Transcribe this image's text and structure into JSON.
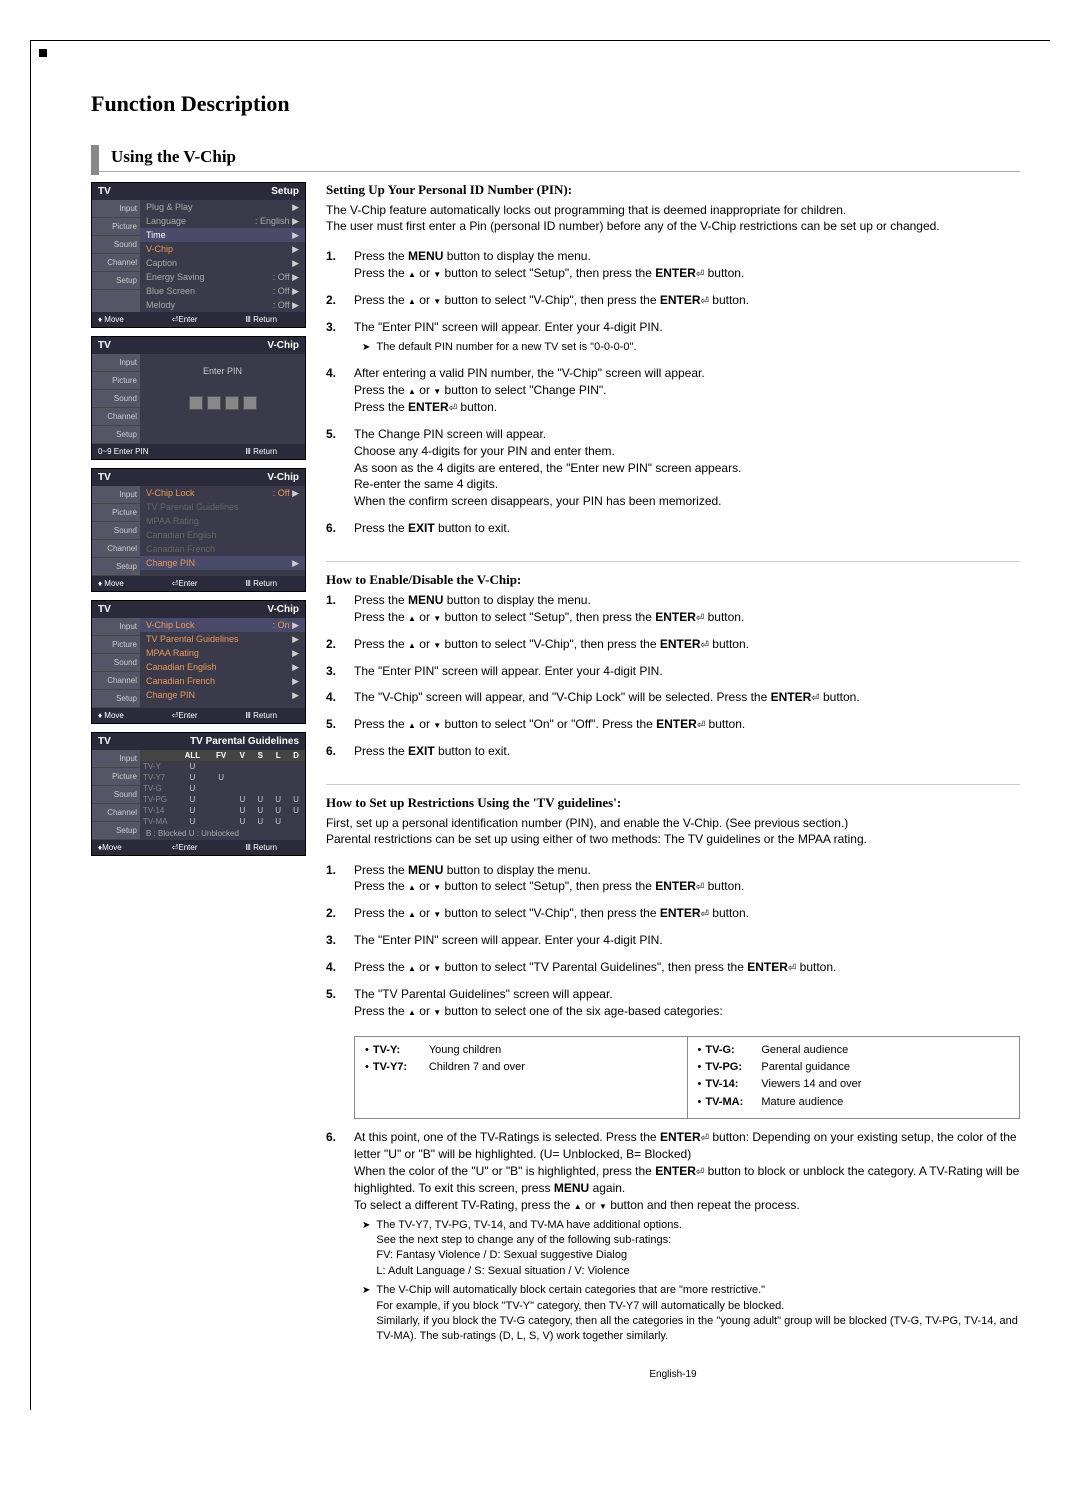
{
  "title": "Function Description",
  "section1": {
    "title": "Using the V-Chip",
    "head": "Setting Up Your Personal ID Number (PIN):",
    "intro1": "The V-Chip feature automatically locks out programming that is deemed inappropriate for children.",
    "intro2": "The user must first enter a Pin (personal ID number) before any of the V-Chip restrictions can be set up or changed.",
    "steps": [
      {
        "n": "1.",
        "t": "Press the <b>MENU</b> button to display the menu.<br>Press the <span class='arr-up'></span> or <span class='arr-dn'></span> button to select \"Setup\", then press the <b>ENTER</b><span class='enter-sym'></span> button."
      },
      {
        "n": "2.",
        "t": "Press the <span class='arr-up'></span> or <span class='arr-dn'></span> button to select \"V-Chip\", then press the <b>ENTER</b><span class='enter-sym'></span> button."
      },
      {
        "n": "3.",
        "t": "The \"Enter PIN\" screen will appear. Enter your 4-digit PIN.",
        "note": "The default PIN number for a new TV set is \"0-0-0-0\"."
      },
      {
        "n": "4.",
        "t": "After entering a valid PIN number, the \"V-Chip\" screen will appear.<br>Press the <span class='arr-up'></span> or <span class='arr-dn'></span> button to select \"Change PIN\".<br>Press the <b>ENTER</b><span class='enter-sym'></span> button."
      },
      {
        "n": "5.",
        "t": "The Change PIN screen will appear.<br>Choose any 4-digits for your PIN and enter them.<br>As soon as the 4 digits are entered, the \"Enter new PIN\" screen appears.<br>Re-enter the same 4 digits.<br>When the confirm screen disappears, your PIN has been memorized."
      },
      {
        "n": "6.",
        "t": "Press the <b>EXIT</b> button to exit."
      }
    ]
  },
  "section2": {
    "head": "How to Enable/Disable the V-Chip:",
    "steps": [
      {
        "n": "1.",
        "t": "Press the <b>MENU</b> button to display the menu.<br>Press the <span class='arr-up'></span> or <span class='arr-dn'></span> button to select \"Setup\", then press the <b>ENTER</b><span class='enter-sym'></span> button."
      },
      {
        "n": "2.",
        "t": "Press the <span class='arr-up'></span> or <span class='arr-dn'></span> button to select \"V-Chip\", then press the <b>ENTER</b><span class='enter-sym'></span> button."
      },
      {
        "n": "3.",
        "t": "The \"Enter PIN\" screen will appear. Enter your 4-digit PIN."
      },
      {
        "n": "4.",
        "t": "The \"V-Chip\" screen will appear, and \"V-Chip Lock\" will be selected. Press the <b>ENTER</b><span class='enter-sym'></span> button."
      },
      {
        "n": "5.",
        "t": "Press the <span class='arr-up'></span> or <span class='arr-dn'></span> button to select \"On\" or \"Off\". Press the <b>ENTER</b><span class='enter-sym'></span> button."
      },
      {
        "n": "6.",
        "t": "Press the <b>EXIT</b> button to exit."
      }
    ]
  },
  "section3": {
    "head": "How to Set up Restrictions Using the 'TV guidelines':",
    "intro1": "First, set up a personal identification number (PIN), and enable the V-Chip. (See previous section.)",
    "intro2": "Parental restrictions can be set up using either of two methods: The TV guidelines or the MPAA rating.",
    "steps": [
      {
        "n": "1.",
        "t": "Press the <b>MENU</b> button to display the menu.<br>Press the <span class='arr-up'></span> or <span class='arr-dn'></span> button to select \"Setup\", then press the <b>ENTER</b><span class='enter-sym'></span> button."
      },
      {
        "n": "2.",
        "t": "Press the <span class='arr-up'></span> or <span class='arr-dn'></span> button to select \"V-Chip\", then press the <b>ENTER</b><span class='enter-sym'></span> button."
      },
      {
        "n": "3.",
        "t": "The \"Enter PIN\" screen will appear. Enter your 4-digit PIN."
      },
      {
        "n": "4.",
        "t": "Press the <span class='arr-up'></span> or <span class='arr-dn'></span> button to select \"TV Parental Guidelines\", then press the <b>ENTER</b><span class='enter-sym'></span> button."
      },
      {
        "n": "5.",
        "t": "The \"TV Parental Guidelines\" screen will appear.<br>Press the <span class='arr-up'></span> or <span class='arr-dn'></span> button to select one of the six age-based categories:"
      },
      {
        "n": "6.",
        "t": "At this point, one of the TV-Ratings is selected. Press the <b>ENTER</b><span class='enter-sym'></span> button: Depending on your existing setup, the color of the letter \"U\" or \"B\" will be highlighted. (U= Unblocked, B= Blocked)<br>When the color of the \"U\" or \"B\" is highlighted, press the <b>ENTER</b><span class='enter-sym'></span> button to block or unblock the category. A TV-Rating will be highlighted. To exit this screen, press <b>MENU</b> again.<br>To select a different TV-Rating, press the <span class='arr-up'></span> or <span class='arr-dn'></span> button and then repeat the process.",
        "notes": [
          "The TV-Y7, TV-PG, TV-14, and TV-MA have additional options.<br>See the next step to change any of the following sub-ratings:<br>FV: Fantasy Violence / D: Sexual suggestive Dialog<br>L: Adult Language / S: Sexual situation / V: Violence",
          "The V-Chip will automatically block certain categories that are \"more restrictive.\"<br>For example, if you block \"TV-Y\" category, then TV-Y7 will automatically be blocked.<br>Similarly, if you block the TV-G category, then all the categories in the \"young adult\" group will be blocked (TV-G, TV-PG, TV-14, and TV-MA). The sub-ratings (D, L, S, V) work together similarly."
        ]
      }
    ],
    "categories": {
      "left": [
        {
          "lbl": "TV-Y:",
          "desc": "Young children"
        },
        {
          "lbl": "TV-Y7:",
          "desc": "Children 7 and over"
        }
      ],
      "right": [
        {
          "lbl": "TV-G:",
          "desc": "General audience"
        },
        {
          "lbl": "TV-PG:",
          "desc": "Parental guidance"
        },
        {
          "lbl": "TV-14:",
          "desc": "Viewers 14 and over"
        },
        {
          "lbl": "TV-MA:",
          "desc": "Mature audience"
        }
      ]
    }
  },
  "tvmenus": {
    "setup": {
      "title": "TV",
      "right": "Setup",
      "sidebar": [
        "Input",
        "Picture",
        "Sound",
        "Channel",
        "Setup"
      ],
      "rows": [
        {
          "l": "Plug & Play",
          "r": "",
          "a": true
        },
        {
          "l": "Language",
          "r": ": English",
          "a": true
        },
        {
          "l": "Time",
          "r": "",
          "a": true,
          "cls": "hl"
        },
        {
          "l": "V-Chip",
          "r": "",
          "a": true,
          "cls": "orange"
        },
        {
          "l": "Caption",
          "r": "",
          "a": true
        },
        {
          "l": "Energy Saving",
          "r": ": Off",
          "a": true
        },
        {
          "l": "Blue Screen",
          "r": ": Off",
          "a": true
        },
        {
          "l": "Melody",
          "r": ": Off",
          "a": true
        }
      ],
      "footer": [
        "♦ Move",
        "⏎Enter",
        "Ⅲ Return"
      ]
    },
    "enterpin": {
      "title": "TV",
      "right": "V-Chip",
      "sidebar": [
        "Input",
        "Picture",
        "Sound",
        "Channel",
        "Setup"
      ],
      "label": "Enter PIN",
      "footer": [
        "0~9 Enter PIN",
        "",
        "Ⅲ Return"
      ]
    },
    "vchip_off": {
      "title": "TV",
      "right": "V-Chip",
      "sidebar": [
        "Input",
        "Picture",
        "Sound",
        "Channel",
        "Setup"
      ],
      "rows": [
        {
          "l": "V-Chip Lock",
          "r": ": Off",
          "a": true,
          "cls": "orange"
        },
        {
          "l": "TV Parental Guidelines",
          "r": "",
          "a": false,
          "dim": true
        },
        {
          "l": "MPAA Rating",
          "r": "",
          "a": false,
          "dim": true
        },
        {
          "l": "Canadian English",
          "r": "",
          "a": false,
          "dim": true
        },
        {
          "l": "Canadian French",
          "r": "",
          "a": false,
          "dim": true
        },
        {
          "l": "Change PIN",
          "r": "",
          "a": true,
          "cls": "hl orange"
        }
      ],
      "footer": [
        "♦ Move",
        "⏎Enter",
        "Ⅲ Return"
      ]
    },
    "vchip_on": {
      "title": "TV",
      "right": "V-Chip",
      "sidebar": [
        "Input",
        "Picture",
        "Sound",
        "Channel",
        "Setup"
      ],
      "rows": [
        {
          "l": "V-Chip Lock",
          "r": ": On",
          "a": true,
          "cls": "hl orange"
        },
        {
          "l": "TV Parental Guidelines",
          "r": "",
          "a": true,
          "cls": "orange"
        },
        {
          "l": "MPAA Rating",
          "r": "",
          "a": true,
          "cls": "orange"
        },
        {
          "l": "Canadian English",
          "r": "",
          "a": true,
          "cls": "orange"
        },
        {
          "l": "Canadian French",
          "r": "",
          "a": true,
          "cls": "orange"
        },
        {
          "l": "Change PIN",
          "r": "",
          "a": true,
          "cls": "orange"
        }
      ],
      "footer": [
        "♦ Move",
        "⏎Enter",
        "Ⅲ Return"
      ]
    },
    "ratings": {
      "title": "TV",
      "right": "TV Parental Guidelines",
      "sidebar": [
        "Input",
        "Picture",
        "Sound",
        "Channel",
        "Setup"
      ],
      "cols": [
        "",
        "ALL",
        "FV",
        "V",
        "S",
        "L",
        "D"
      ],
      "rows": [
        [
          "TV-Y",
          "U",
          "",
          "",
          "",
          "",
          ""
        ],
        [
          "TV-Y7",
          "U",
          "U",
          "",
          "",
          "",
          ""
        ],
        [
          "TV-G",
          "U",
          "",
          "",
          "",
          "",
          ""
        ],
        [
          "TV-PG",
          "U",
          "",
          "U",
          "U",
          "U",
          "U"
        ],
        [
          "TV-14",
          "U",
          "",
          "U",
          "U",
          "U",
          "U"
        ],
        [
          "TV-MA",
          "U",
          "",
          "U",
          "U",
          "U",
          ""
        ]
      ],
      "legend": "B : Blocked       U : Unblocked",
      "footer": [
        "♦Move",
        "⏎Enter",
        "Ⅲ Return"
      ]
    }
  },
  "pagenum": "English-19",
  "colors": {
    "tv_bg": "#3a3a4a",
    "tv_header": "#2a2a3a",
    "tv_sidebar": "#555566",
    "tv_hl": "#4a4a6a",
    "orange": "#e8995a",
    "dim": "#777"
  }
}
